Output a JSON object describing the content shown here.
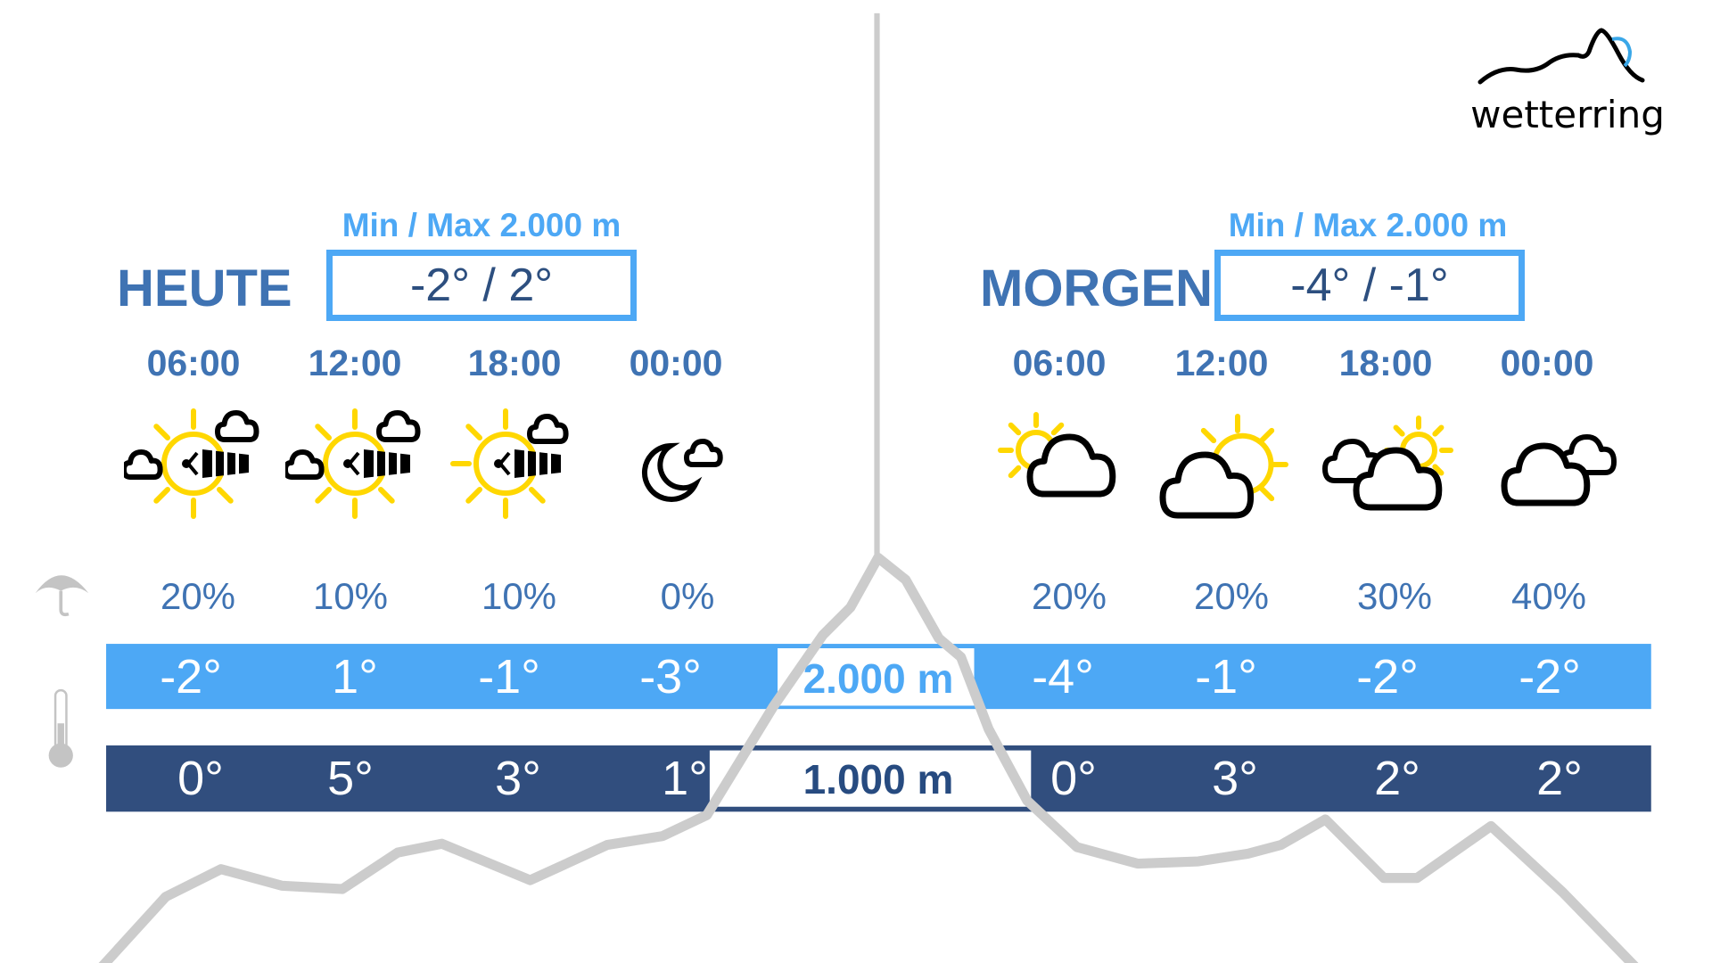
{
  "logo": {
    "text": "wetterring",
    "accent": "#3aa7e8"
  },
  "today": {
    "label": "HEUTE",
    "minmax_label": "Min / Max 2.000 m",
    "minmax": "-2° / 2°",
    "slots": [
      {
        "time": "06:00",
        "icon": "sun-clouds-wind",
        "rain": "20%",
        "temp_2000": "-2°",
        "temp_1000": "0°"
      },
      {
        "time": "12:00",
        "icon": "sun-clouds-wind",
        "rain": "10%",
        "temp_2000": "1°",
        "temp_1000": "5°"
      },
      {
        "time": "18:00",
        "icon": "sun-cloud-wind",
        "rain": "10%",
        "temp_2000": "-1°",
        "temp_1000": "3°"
      },
      {
        "time": "00:00",
        "icon": "moon-cloud",
        "rain": "0%",
        "temp_2000": "-3°",
        "temp_1000": "1°"
      }
    ]
  },
  "tomorrow": {
    "label": "MORGEN",
    "minmax_label": "Min / Max 2.000 m",
    "minmax": "-4° / -1°",
    "slots": [
      {
        "time": "06:00",
        "icon": "sun-behind-cloud",
        "rain": "20%",
        "temp_2000": "-4°",
        "temp_1000": "0°"
      },
      {
        "time": "12:00",
        "icon": "cloud-sun",
        "rain": "20%",
        "temp_2000": "-1°",
        "temp_1000": "3°"
      },
      {
        "time": "18:00",
        "icon": "clouds-sun",
        "rain": "30%",
        "temp_2000": "-2°",
        "temp_1000": "2°"
      },
      {
        "time": "00:00",
        "icon": "clouds",
        "rain": "40%",
        "temp_2000": "-2°",
        "temp_1000": "2°"
      }
    ]
  },
  "altitudes": {
    "high": "2.000 m",
    "low": "1.000 m"
  },
  "colors": {
    "light_bar": "#4da8f5",
    "dark_bar": "#314e7e",
    "text_blue": "#3f73b3",
    "sun": "#ffd700",
    "mountain": "#cccccc"
  }
}
